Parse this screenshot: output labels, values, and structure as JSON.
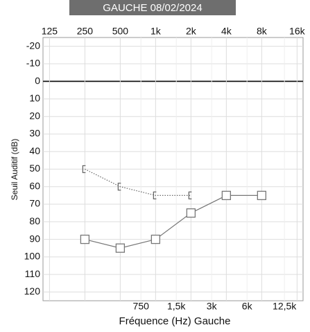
{
  "chart_data": {
    "type": "line",
    "title": "GAUCHE 08/02/2024",
    "xlabel": "Fréquence (Hz) Gauche",
    "ylabel": "Seuil Auditif (dB)",
    "xscale": "log",
    "xlim": [
      110,
      18000
    ],
    "ylim": [
      -25,
      125
    ],
    "y_inverted": true,
    "grid": true,
    "xticks": [
      125,
      250,
      500,
      {
        "value": 1000,
        "label": "1k"
      },
      {
        "value": 2000,
        "label": "2k"
      },
      {
        "value": 4000,
        "label": "4k"
      },
      {
        "value": 8000,
        "label": "8k"
      },
      {
        "value": 16000,
        "label": "16k"
      }
    ],
    "xticks_minor": [
      750,
      {
        "value": 1500,
        "label": "1,5k"
      },
      {
        "value": 3000,
        "label": "3k"
      },
      {
        "value": 6000,
        "label": "6k"
      },
      {
        "value": 12500,
        "label": "12,5k"
      }
    ],
    "yticks": [
      -20,
      -10,
      0,
      10,
      20,
      30,
      40,
      50,
      60,
      70,
      80,
      90,
      100,
      110,
      120
    ],
    "series": [
      {
        "marker": "bracket",
        "dash": "dotted",
        "color": "#666",
        "x": [
          250,
          500,
          1000,
          2000
        ],
        "values": [
          50,
          60,
          65,
          65
        ]
      },
      {
        "marker": "square",
        "dash": "solid",
        "color": "#777",
        "x": [
          250,
          500,
          1000,
          2000,
          4000,
          8000
        ],
        "values": [
          90,
          95,
          90,
          75,
          65,
          65
        ]
      }
    ]
  }
}
